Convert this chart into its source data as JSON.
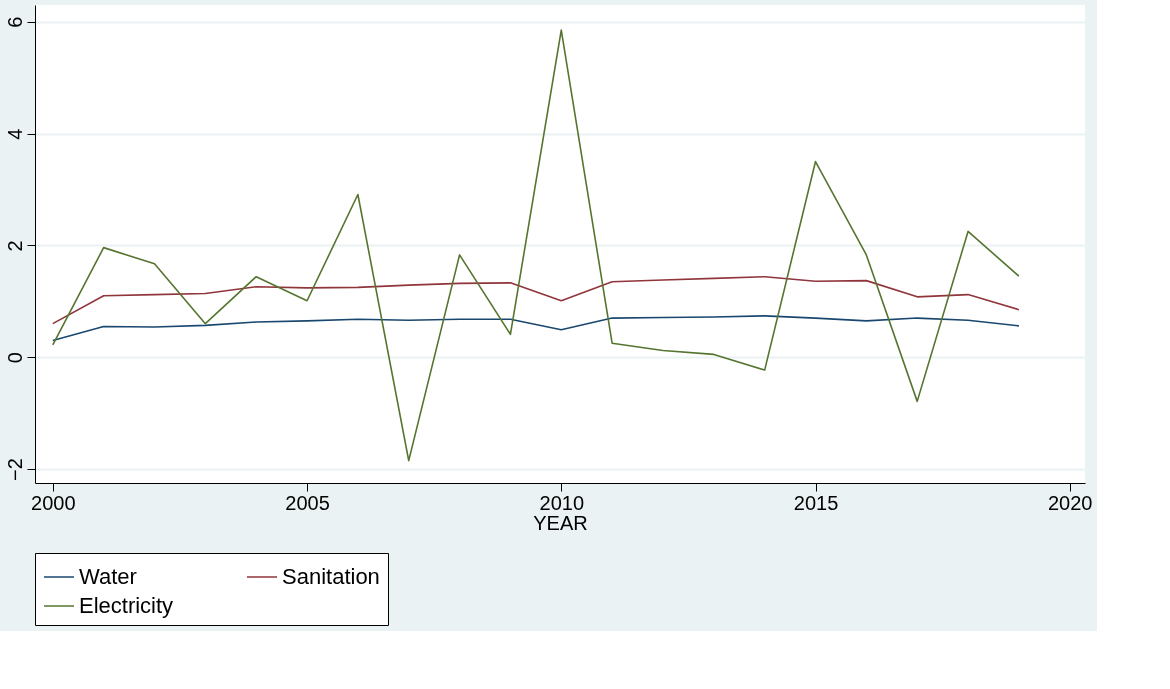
{
  "chart_data": {
    "type": "line",
    "xlabel": "YEAR",
    "x": [
      2000,
      2001,
      2002,
      2003,
      2004,
      2005,
      2006,
      2007,
      2008,
      2009,
      2010,
      2011,
      2012,
      2013,
      2014,
      2015,
      2016,
      2017,
      2018,
      2019
    ],
    "series": [
      {
        "name": "Water",
        "color": "#1a476f",
        "values": [
          0.3,
          0.55,
          0.54,
          0.57,
          0.63,
          0.65,
          0.68,
          0.66,
          0.68,
          0.68,
          0.49,
          0.7,
          0.71,
          0.72,
          0.74,
          0.7,
          0.65,
          0.7,
          0.66,
          0.56
        ]
      },
      {
        "name": "Sanitation",
        "color": "#90353b",
        "values": [
          0.6,
          1.1,
          1.12,
          1.14,
          1.26,
          1.24,
          1.25,
          1.29,
          1.32,
          1.33,
          1.01,
          1.35,
          1.38,
          1.41,
          1.44,
          1.36,
          1.37,
          1.08,
          1.12,
          0.85
        ]
      },
      {
        "name": "Electricity",
        "color": "#55752f",
        "values": [
          0.22,
          1.96,
          1.67,
          0.6,
          1.44,
          1.01,
          2.91,
          -1.85,
          1.83,
          0.41,
          5.85,
          0.25,
          0.12,
          0.05,
          -0.23,
          3.5,
          1.83,
          -0.79,
          2.25,
          1.45
        ]
      }
    ],
    "xlim": [
      1999.65,
      2020.3
    ],
    "xticks": [
      2000,
      2005,
      2010,
      2015,
      2020
    ],
    "ylim": [
      -2.25,
      6.3
    ],
    "yticks": [
      -2,
      0,
      2,
      4,
      6
    ],
    "grid": "y",
    "legend": "bottom",
    "marker": "none",
    "line_style": "solid"
  }
}
